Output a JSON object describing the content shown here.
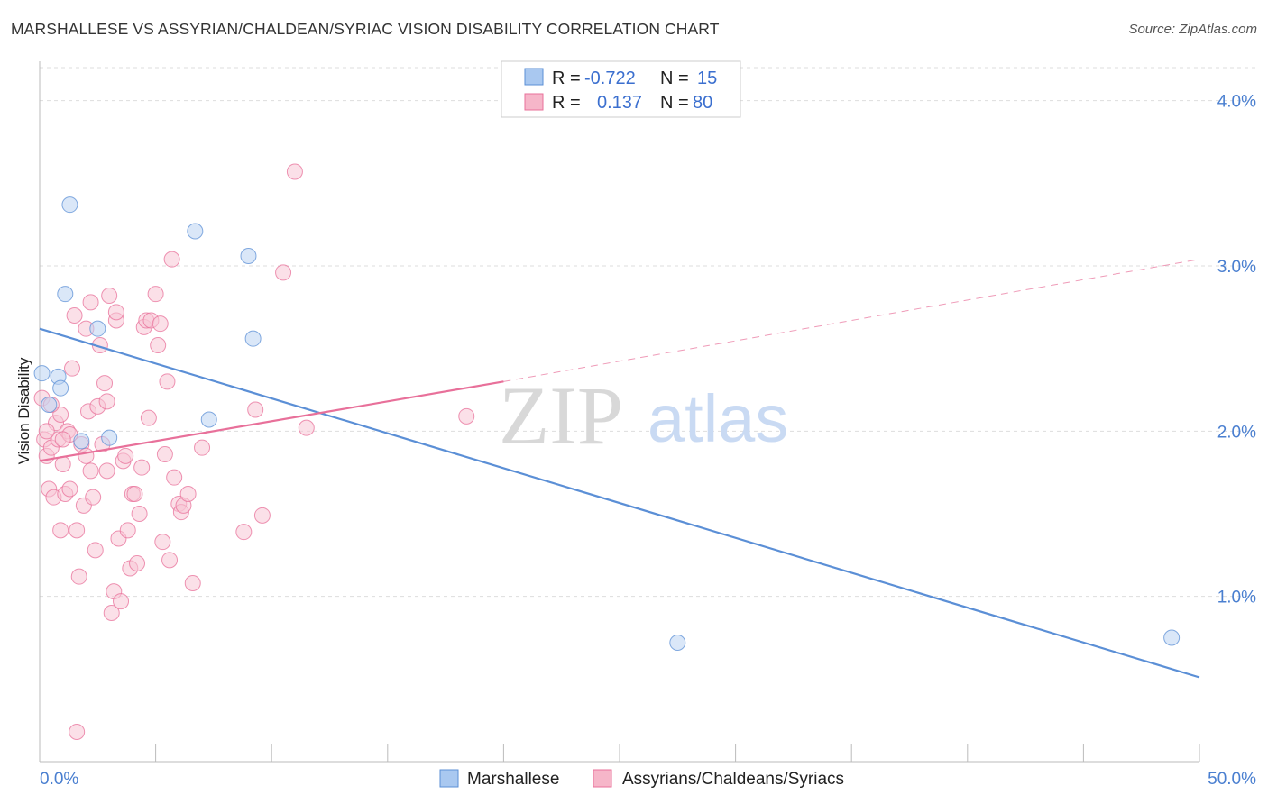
{
  "title": "MARSHALLESE VS ASSYRIAN/CHALDEAN/SYRIAC VISION DISABILITY CORRELATION CHART",
  "source": "Source: ZipAtlas.com",
  "watermark": {
    "zip": "ZIP",
    "atlas": "atlas"
  },
  "legend": {
    "rows": [
      {
        "r_label": "R =",
        "r_value": "-0.722",
        "n_label": "N =",
        "n_value": "15",
        "color": "#a9c8f0"
      },
      {
        "r_label": "R =",
        "r_value": "0.137",
        "n_label": "N =",
        "n_value": "80",
        "color": "#f6b6c9"
      }
    ]
  },
  "chart_data": {
    "type": "scatter",
    "title": "MARSHALLESE VS ASSYRIAN/CHALDEAN/SYRIAC VISION DISABILITY CORRELATION CHART",
    "xlabel": "",
    "ylabel": "Vision Disability",
    "xlim": [
      0,
      50
    ],
    "ylim": [
      0,
      4.2
    ],
    "x_tick_labels": [
      "0.0%",
      "50.0%"
    ],
    "y_ticks": [
      1.0,
      2.0,
      3.0,
      4.0
    ],
    "y_tick_labels": [
      "1.0%",
      "2.0%",
      "3.0%",
      "4.0%"
    ],
    "grid": true,
    "legend_position": "top-center",
    "series": [
      {
        "name": "Marshallese",
        "color": "#5b8fd6",
        "fill": "#bcd4f3",
        "points": [
          [
            0.1,
            2.35
          ],
          [
            0.8,
            2.33
          ],
          [
            0.9,
            2.26
          ],
          [
            0.4,
            2.16
          ],
          [
            1.1,
            2.83
          ],
          [
            1.3,
            3.37
          ],
          [
            2.5,
            2.62
          ],
          [
            1.8,
            1.94
          ],
          [
            3.0,
            1.96
          ],
          [
            6.7,
            3.21
          ],
          [
            7.3,
            2.07
          ],
          [
            9.0,
            3.06
          ],
          [
            9.2,
            2.56
          ],
          [
            27.5,
            0.72
          ],
          [
            48.8,
            0.75
          ]
        ],
        "trend": {
          "x": [
            0,
            50
          ],
          "y": [
            2.62,
            0.51
          ],
          "style": "solid"
        }
      },
      {
        "name": "Assyrians/Chaldeans/Syriacs",
        "color": "#e8709a",
        "fill": "#f8c6d5",
        "points": [
          [
            0.1,
            2.2
          ],
          [
            0.2,
            1.95
          ],
          [
            0.3,
            1.85
          ],
          [
            0.4,
            1.65
          ],
          [
            0.5,
            1.9
          ],
          [
            0.6,
            1.6
          ],
          [
            0.7,
            2.05
          ],
          [
            0.8,
            1.95
          ],
          [
            0.9,
            2.1
          ],
          [
            1.0,
            1.8
          ],
          [
            1.1,
            1.62
          ],
          [
            1.2,
            2.0
          ],
          [
            1.3,
            1.65
          ],
          [
            1.4,
            2.38
          ],
          [
            1.5,
            2.7
          ],
          [
            1.6,
            1.4
          ],
          [
            1.7,
            1.12
          ],
          [
            1.8,
            1.92
          ],
          [
            1.9,
            1.55
          ],
          [
            2.0,
            2.62
          ],
          [
            2.1,
            2.12
          ],
          [
            2.2,
            1.76
          ],
          [
            2.3,
            1.6
          ],
          [
            2.4,
            1.28
          ],
          [
            2.5,
            2.15
          ],
          [
            2.6,
            2.52
          ],
          [
            2.7,
            1.92
          ],
          [
            2.8,
            2.29
          ],
          [
            2.9,
            2.18
          ],
          [
            3.0,
            2.82
          ],
          [
            3.1,
            0.9
          ],
          [
            3.2,
            1.03
          ],
          [
            3.3,
            2.67
          ],
          [
            3.4,
            1.35
          ],
          [
            3.5,
            0.97
          ],
          [
            3.6,
            1.82
          ],
          [
            3.7,
            1.85
          ],
          [
            3.8,
            1.4
          ],
          [
            3.9,
            1.17
          ],
          [
            4.0,
            1.62
          ],
          [
            4.2,
            1.2
          ],
          [
            4.3,
            1.5
          ],
          [
            4.4,
            1.78
          ],
          [
            4.5,
            2.63
          ],
          [
            4.6,
            2.67
          ],
          [
            4.7,
            2.08
          ],
          [
            4.8,
            2.67
          ],
          [
            5.0,
            2.83
          ],
          [
            5.1,
            2.52
          ],
          [
            5.3,
            1.33
          ],
          [
            5.4,
            1.86
          ],
          [
            5.5,
            2.3
          ],
          [
            5.6,
            1.22
          ],
          [
            5.7,
            3.04
          ],
          [
            5.8,
            1.72
          ],
          [
            6.0,
            1.56
          ],
          [
            6.1,
            1.51
          ],
          [
            6.2,
            1.55
          ],
          [
            6.4,
            1.62
          ],
          [
            6.6,
            1.08
          ],
          [
            7.0,
            1.9
          ],
          [
            8.8,
            1.39
          ],
          [
            9.3,
            2.13
          ],
          [
            9.6,
            1.49
          ],
          [
            10.5,
            2.96
          ],
          [
            11.0,
            3.57
          ],
          [
            11.5,
            2.02
          ],
          [
            18.4,
            2.09
          ],
          [
            1.6,
            0.18
          ],
          [
            0.5,
            2.16
          ],
          [
            0.9,
            1.4
          ],
          [
            1.3,
            1.98
          ],
          [
            2.2,
            2.78
          ],
          [
            2.9,
            1.76
          ],
          [
            4.1,
            1.62
          ],
          [
            0.3,
            2.0
          ],
          [
            1.0,
            1.95
          ],
          [
            2.0,
            1.85
          ],
          [
            3.3,
            2.72
          ],
          [
            5.2,
            2.65
          ]
        ],
        "trend": {
          "x": [
            0,
            20
          ],
          "y": [
            1.82,
            2.3
          ],
          "style": "solid",
          "extension": {
            "x": [
              20,
              50
            ],
            "y": [
              2.3,
              3.04
            ],
            "style": "dashed"
          }
        }
      }
    ]
  },
  "bottom_legend": [
    {
      "label": "Marshallese",
      "color": "#a9c8f0"
    },
    {
      "label": "Assyrians/Chaldeans/Syriacs",
      "color": "#f6b6c9"
    }
  ]
}
